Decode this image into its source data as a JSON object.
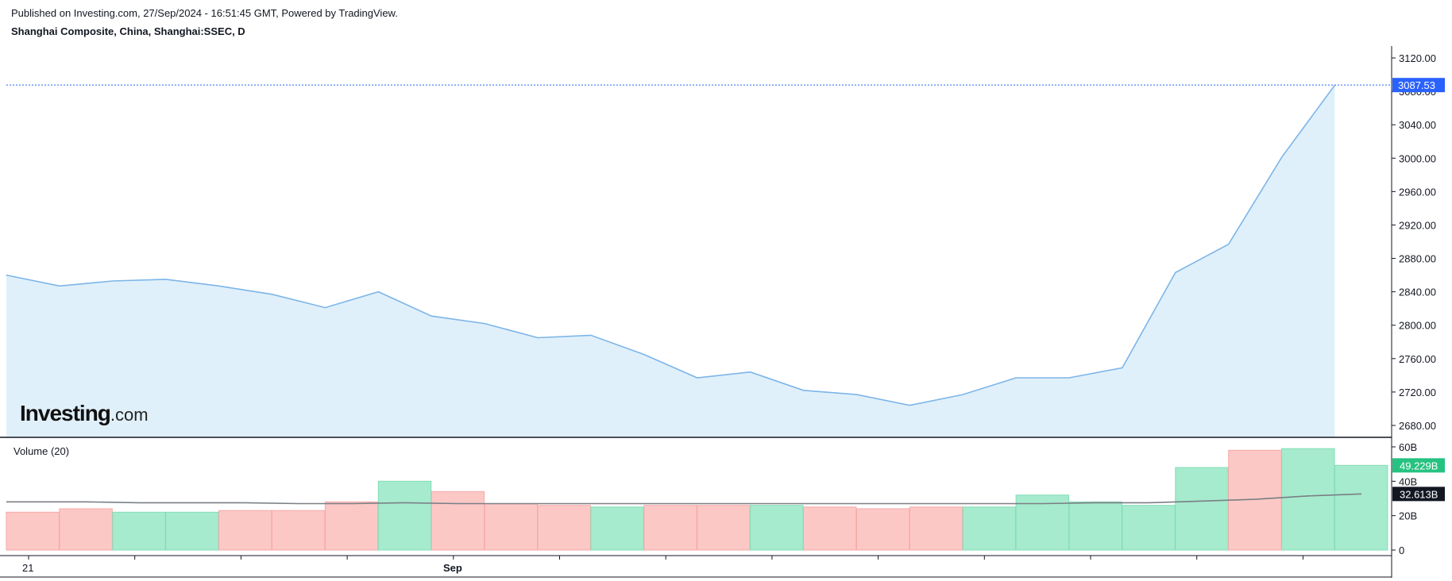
{
  "header": {
    "published": "Published on Investing.com, 27/Sep/2024 - 16:51:45 GMT, Powered by TradingView.",
    "symbol": "Shanghai Composite, China, Shanghai:SSEC, D"
  },
  "logo": {
    "main": "Investing",
    "domain": ".com"
  },
  "colors": {
    "line": "#7cb5e8",
    "area": "#e0f0fa",
    "up_volume": "#a6ebce",
    "down_volume": "#fcc8c6",
    "up_volume_border": "#84dcb7",
    "down_volume_border": "#f5a9a6",
    "ma_line": "#7a7f84",
    "price_badge": "#2962ff",
    "volume_badge": "#26c281",
    "ma_badge": "#131722"
  },
  "chart_data": [
    {
      "type": "area",
      "ylim": [
        2660,
        3140
      ],
      "y_ticks": [
        "3120.00",
        "3080.00",
        "3040.00",
        "3000.00",
        "2960.00",
        "2920.00",
        "2880.00",
        "2840.00",
        "2800.00",
        "2760.00",
        "2720.00",
        "2680.00"
      ],
      "x_tick_labels": [
        "21",
        "Sep"
      ],
      "values": [
        2860,
        2847,
        2853,
        2855,
        2847,
        2837,
        2821,
        2840,
        2811,
        2802,
        2785,
        2788,
        2765,
        2737,
        2744,
        2722,
        2717,
        2704,
        2717,
        2737,
        2737,
        2749,
        2863,
        2897,
        3001,
        3087.53
      ],
      "last_value_label": "3087.53"
    },
    {
      "type": "bar",
      "title": "Volume (20)",
      "ylim": [
        0,
        60
      ],
      "y_ticks": [
        "60B",
        "40B",
        "20B",
        "0"
      ],
      "values": [
        22,
        24,
        22,
        22,
        23,
        23,
        28,
        40,
        34,
        27,
        26,
        25,
        26,
        26,
        26,
        25,
        24,
        25,
        25,
        32,
        28,
        26,
        48,
        58,
        59,
        49.229
      ],
      "direction": [
        "down",
        "down",
        "up",
        "up",
        "down",
        "down",
        "down",
        "up",
        "down",
        "down",
        "down",
        "up",
        "down",
        "down",
        "up",
        "down",
        "down",
        "down",
        "up",
        "up",
        "up",
        "up",
        "up",
        "down",
        "up",
        "up"
      ],
      "ma_values": [
        28,
        28,
        27.5,
        27.5,
        27.5,
        27,
        27,
        27.5,
        27,
        27,
        27,
        27,
        27,
        27,
        27,
        27,
        27,
        27,
        27,
        27,
        27.5,
        27.5,
        28.5,
        29.5,
        31.5,
        32.613
      ],
      "last_value_label": "49.229B",
      "ma_last_label": "32.613B"
    }
  ]
}
